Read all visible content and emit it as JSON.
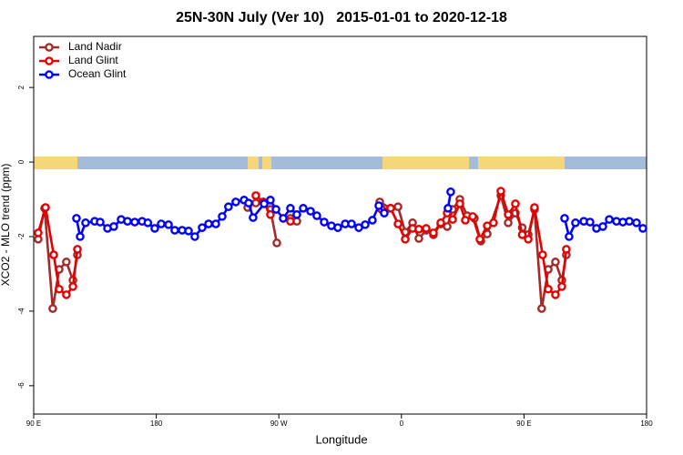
{
  "chart_data": {
    "type": "line",
    "title": "25N-30N July (Ver 10)   2015-01-01 to 2020-12-18",
    "x_label": "Longitude",
    "y_label": "XCO2 - MLO trend (ppm)",
    "xlim": [
      90,
      540
    ],
    "ylim": [
      -6.76,
      3.37
    ],
    "xticks": [
      {
        "value": 90,
        "label": "90 E"
      },
      {
        "value": 180,
        "label": "180"
      },
      {
        "value": 270,
        "label": "90 W"
      },
      {
        "value": 360,
        "label": "0"
      },
      {
        "value": 450,
        "label": "90 E"
      },
      {
        "value": 540,
        "label": "180"
      }
    ],
    "yticks": [
      -6,
      -4,
      -2,
      0,
      2
    ],
    "legend": "top-left",
    "series": [
      {
        "name": "Land Nadir",
        "color": "#a52a2a",
        "x": [
          93.3,
          98,
          104,
          108.7,
          114,
          118.8,
          122.1,
          null,
          247.1,
          253.1,
          258.5,
          263.8,
          268.5,
          null,
          278.5,
          283.2,
          null,
          344.1,
          352.1,
          357.5,
          362.8,
          368.2,
          372.8,
          378.2,
          383.5,
          388.9,
          393.6,
          397.6,
          402.9,
          408.3,
          413.6,
          418.3,
          423,
          433,
          438.4,
          443.7,
          448.7,
          453.1,
          457.7,
          463,
          467.8,
          473.1,
          477.8,
          481.1
        ],
        "values": [
          -2.07,
          -1.24,
          -3.93,
          -2.88,
          -2.68,
          -3.17,
          -2.49,
          null,
          -1.22,
          -1.1,
          -1.07,
          -1.27,
          -2.17,
          null,
          -1.51,
          -1.59,
          null,
          -1.07,
          -1.24,
          -1.2,
          -1.88,
          -1.63,
          -2.05,
          -1.83,
          -1.95,
          -1.66,
          -1.73,
          -1.27,
          -1.0,
          -1.44,
          -1.51,
          -2.12,
          -1.93,
          -0.9,
          -1.63,
          -1.37,
          -1.76,
          -1.95,
          -1.27,
          -3.93,
          -2.88,
          -2.68,
          -3.17,
          -2.49
        ]
      },
      {
        "name": "Land Glint",
        "color": "#e60000",
        "x": [
          93.3,
          98.7,
          104.7,
          108.7,
          114,
          118.8,
          122.1,
          null,
          253.1,
          258.5,
          263.8,
          null,
          278.5,
          null,
          345.4,
          352.1,
          357.5,
          362.8,
          368.2,
          372.8,
          378.2,
          383.5,
          388.9,
          393.6,
          397.6,
          402.9,
          406.9,
          412.3,
          417.6,
          423,
          427.6,
          433,
          438.4,
          443.7,
          448.7,
          453.1,
          457.7,
          463.7,
          467.8,
          473.1,
          477.8,
          481.1
        ],
        "values": [
          -1.9,
          -1.22,
          -2.49,
          -3.41,
          -3.56,
          -3.34,
          -2.34,
          null,
          -0.9,
          -1.07,
          -1.41,
          null,
          -1.59,
          null,
          -1.27,
          -1.24,
          -1.66,
          -2.07,
          -1.78,
          -1.8,
          -1.78,
          -1.9,
          -1.63,
          -1.37,
          -1.54,
          -1.12,
          -1.56,
          -1.46,
          -2.07,
          -1.71,
          -1.63,
          -0.78,
          -1.41,
          -1.12,
          -1.95,
          -2.07,
          -1.22,
          -2.49,
          -3.41,
          -3.56,
          -3.34,
          -2.34
        ]
      },
      {
        "name": "Ocean Glint",
        "color": "#0000ff",
        "x": [
          121.4,
          124.1,
          128.1,
          134.8,
          138.8,
          144.2,
          148.8,
          154.2,
          158.9,
          164.2,
          169.6,
          173.8,
          178.9,
          183.6,
          189,
          193.6,
          199,
          203.7,
          208.3,
          213.7,
          218.4,
          223.7,
          228.4,
          233,
          238.4,
          244.5,
          247.8,
          251.1,
          259.2,
          263.8,
          267.9,
          273.2,
          278.5,
          283.2,
          287.9,
          293.3,
          297.9,
          303.3,
          308.6,
          313.3,
          318.7,
          323.4,
          328.7,
          333.4,
          338.7,
          343.4,
          347.4,
          null,
          394.2,
          396.2,
          null,
          479.8,
          483.1,
          487.8,
          493.9,
          498.5,
          503.2,
          507.9,
          512.6,
          517.9,
          522.6,
          527.3,
          532.6,
          537.3
        ],
        "values": [
          -1.51,
          -2.0,
          -1.63,
          -1.59,
          -1.61,
          -1.78,
          -1.73,
          -1.54,
          -1.59,
          -1.61,
          -1.59,
          -1.63,
          -1.78,
          -1.66,
          -1.68,
          -1.83,
          -1.83,
          -1.85,
          -2.0,
          -1.76,
          -1.66,
          -1.66,
          -1.46,
          -1.2,
          -1.07,
          -1.02,
          -1.1,
          -1.49,
          -1.12,
          -1.02,
          -1.27,
          -1.51,
          -1.24,
          -1.41,
          -1.24,
          -1.32,
          -1.44,
          -1.61,
          -1.71,
          -1.76,
          -1.66,
          -1.66,
          -1.76,
          -1.68,
          -1.56,
          -1.17,
          -1.37,
          null,
          -1.24,
          -0.8,
          null,
          -1.51,
          -2.0,
          -1.63,
          -1.59,
          -1.61,
          -1.78,
          -1.73,
          -1.54,
          -1.59,
          -1.61,
          -1.59,
          -1.63,
          -1.78
        ]
      }
    ]
  }
}
